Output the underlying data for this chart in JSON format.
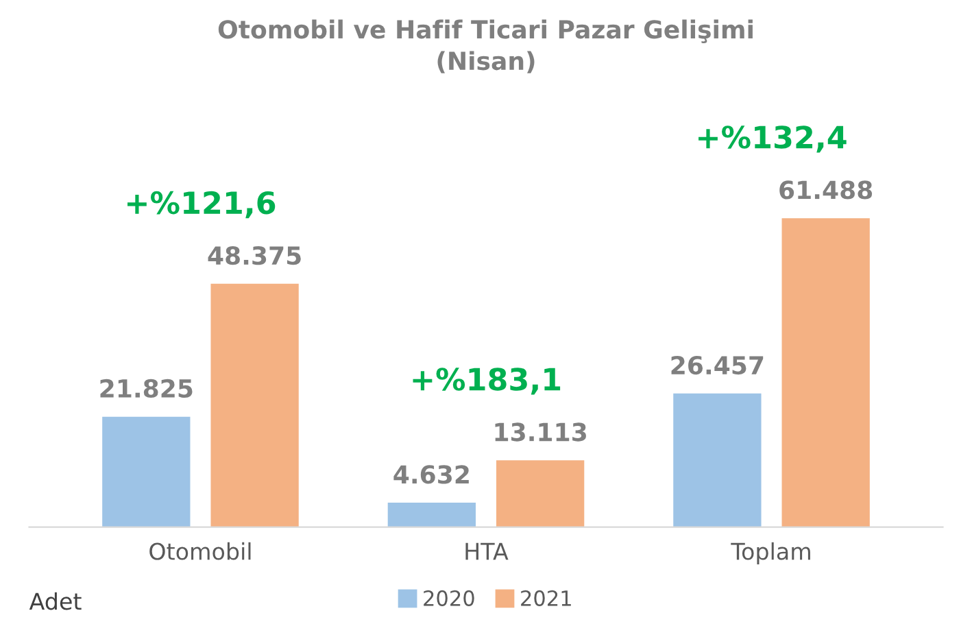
{
  "chart_data": {
    "type": "bar",
    "title": "Otomobil ve Hafif Ticari Pazar Gelişimi\n(Nisan)",
    "categories": [
      "Otomobil",
      "HTA",
      "Toplam"
    ],
    "series": [
      {
        "name": "2020",
        "color": "#9dc3e6",
        "values": [
          21825,
          4632,
          26457
        ],
        "value_labels": [
          "21.825",
          "4.632",
          "26.457"
        ]
      },
      {
        "name": "2021",
        "color": "#f4b183",
        "values": [
          48375,
          13113,
          61488
        ],
        "value_labels": [
          "48.375",
          "13.113",
          "61.488"
        ]
      }
    ],
    "tick_labels": "x",
    "grid": false,
    "legend": "bottom",
    "annotations": [
      "+%121,6",
      "+%183,1",
      "+%132,4",
      "Adet"
    ]
  }
}
